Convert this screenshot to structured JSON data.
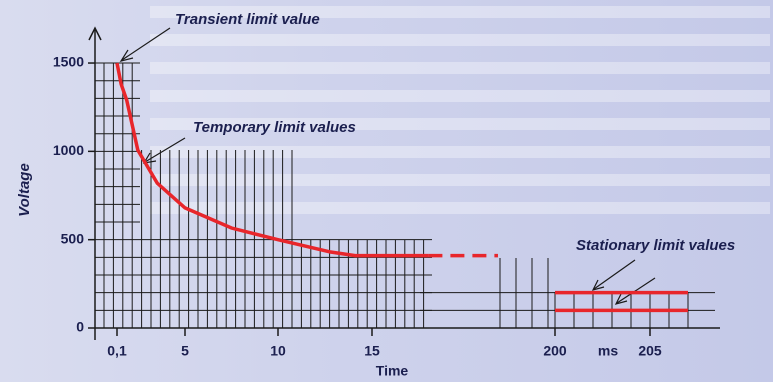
{
  "chart_data": {
    "type": "line",
    "y_label": "Voltage",
    "x_label": "Time",
    "x_unit": "ms",
    "annotations": [
      "Transient limit value",
      "Temporary limit values",
      "Stationary limit values"
    ],
    "ylim": [
      0,
      1700
    ],
    "yticks": [
      0,
      500,
      1000,
      1500
    ],
    "xticks": [
      {
        "value": 0.1,
        "label": "0,1"
      },
      5,
      10,
      15,
      200,
      205
    ],
    "grid": true,
    "series": [
      {
        "color": "#e8262b",
        "dashed": false,
        "x": [
          0.1,
          0.4,
          0.8,
          1.6,
          3,
          5,
          7.5,
          10,
          12.8,
          14.1,
          18
        ],
        "values": [
          1500,
          1380,
          1290,
          1007,
          820,
          680,
          566,
          500,
          430,
          410,
          410
        ]
      },
      {
        "color": "#e8262b",
        "dashed": true,
        "x": [
          18,
          21.7
        ],
        "values": [
          410,
          410
        ]
      },
      {
        "color": "#e8262b",
        "dashed": false,
        "x": [
          200,
          207
        ],
        "values": [
          200,
          200
        ]
      },
      {
        "color": "#e8262b",
        "dashed": false,
        "x": [
          200,
          207
        ],
        "values": [
          100,
          100
        ]
      }
    ]
  }
}
